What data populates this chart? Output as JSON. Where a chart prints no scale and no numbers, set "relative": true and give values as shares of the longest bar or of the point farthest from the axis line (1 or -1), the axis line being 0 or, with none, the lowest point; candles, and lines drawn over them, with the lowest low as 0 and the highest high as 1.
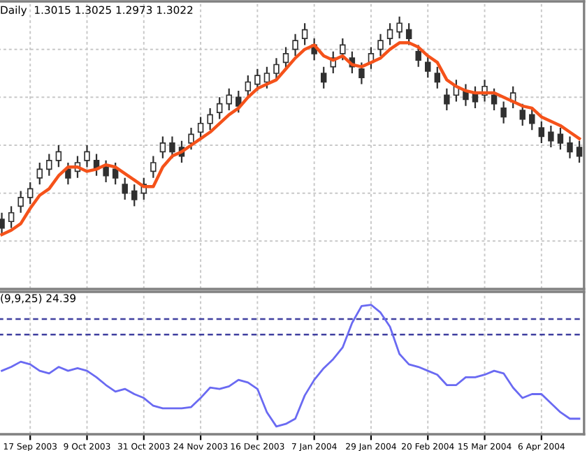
{
  "chart_data": [
    {
      "type": "candlestick",
      "title": "Daily  1.3015 1.3025 1.2973 1.3022",
      "relative": true,
      "grid": true,
      "tick_labels": false,
      "color": "#303030",
      "categories": [
        null,
        null,
        null,
        null,
        null,
        null,
        null,
        null,
        null,
        null,
        null,
        null,
        null,
        null,
        null,
        null,
        null,
        null,
        null,
        null,
        null,
        null,
        null,
        null,
        null,
        null,
        null,
        null,
        null,
        null,
        null,
        null,
        null,
        null,
        null,
        null,
        null,
        null,
        null,
        null,
        null,
        null,
        null,
        null,
        null,
        null,
        null,
        null,
        null,
        null,
        null,
        null,
        null,
        null,
        null,
        null,
        null,
        null,
        null,
        null,
        null,
        null
      ],
      "ohlc": [
        [
          0.07,
          0.1,
          0.0,
          0.03
        ],
        [
          0.06,
          0.13,
          0.03,
          0.1
        ],
        [
          0.13,
          0.2,
          0.1,
          0.17
        ],
        [
          0.17,
          0.24,
          0.14,
          0.21
        ],
        [
          0.26,
          0.33,
          0.23,
          0.3
        ],
        [
          0.3,
          0.37,
          0.27,
          0.34
        ],
        [
          0.34,
          0.41,
          0.31,
          0.38
        ],
        [
          0.3,
          0.33,
          0.23,
          0.26
        ],
        [
          0.29,
          0.36,
          0.26,
          0.33
        ],
        [
          0.34,
          0.41,
          0.31,
          0.38
        ],
        [
          0.34,
          0.37,
          0.27,
          0.3
        ],
        [
          0.31,
          0.34,
          0.24,
          0.27
        ],
        [
          0.3,
          0.33,
          0.23,
          0.26
        ],
        [
          0.23,
          0.26,
          0.16,
          0.19
        ],
        [
          0.2,
          0.23,
          0.13,
          0.16
        ],
        [
          0.19,
          0.26,
          0.16,
          0.23
        ],
        [
          0.29,
          0.36,
          0.26,
          0.33
        ],
        [
          0.38,
          0.45,
          0.35,
          0.42
        ],
        [
          0.42,
          0.45,
          0.35,
          0.38
        ],
        [
          0.4,
          0.43,
          0.33,
          0.36
        ],
        [
          0.42,
          0.49,
          0.39,
          0.46
        ],
        [
          0.47,
          0.54,
          0.44,
          0.51
        ],
        [
          0.51,
          0.58,
          0.48,
          0.55
        ],
        [
          0.56,
          0.63,
          0.53,
          0.6
        ],
        [
          0.6,
          0.67,
          0.57,
          0.64
        ],
        [
          0.63,
          0.66,
          0.56,
          0.59
        ],
        [
          0.66,
          0.73,
          0.63,
          0.7
        ],
        [
          0.69,
          0.76,
          0.66,
          0.73
        ],
        [
          0.7,
          0.77,
          0.67,
          0.74
        ],
        [
          0.74,
          0.81,
          0.71,
          0.78
        ],
        [
          0.79,
          0.86,
          0.76,
          0.83
        ],
        [
          0.85,
          0.92,
          0.82,
          0.89
        ],
        [
          0.9,
          0.97,
          0.87,
          0.94
        ],
        [
          0.87,
          0.9,
          0.8,
          0.83
        ],
        [
          0.74,
          0.77,
          0.67,
          0.7
        ],
        [
          0.77,
          0.84,
          0.74,
          0.81
        ],
        [
          0.83,
          0.9,
          0.8,
          0.87
        ],
        [
          0.81,
          0.84,
          0.74,
          0.77
        ],
        [
          0.76,
          0.79,
          0.69,
          0.72
        ],
        [
          0.79,
          0.86,
          0.76,
          0.83
        ],
        [
          0.85,
          0.92,
          0.82,
          0.89
        ],
        [
          0.9,
          0.97,
          0.87,
          0.94
        ],
        [
          0.93,
          1.0,
          0.9,
          0.97
        ],
        [
          0.94,
          0.97,
          0.87,
          0.9
        ],
        [
          0.84,
          0.87,
          0.77,
          0.8
        ],
        [
          0.79,
          0.82,
          0.72,
          0.75
        ],
        [
          0.74,
          0.77,
          0.67,
          0.7
        ],
        [
          0.64,
          0.67,
          0.57,
          0.6
        ],
        [
          0.64,
          0.71,
          0.61,
          0.68
        ],
        [
          0.66,
          0.69,
          0.59,
          0.62
        ],
        [
          0.65,
          0.68,
          0.58,
          0.61
        ],
        [
          0.64,
          0.71,
          0.61,
          0.68
        ],
        [
          0.64,
          0.67,
          0.57,
          0.6
        ],
        [
          0.58,
          0.61,
          0.51,
          0.54
        ],
        [
          0.61,
          0.68,
          0.58,
          0.65
        ],
        [
          0.57,
          0.6,
          0.5,
          0.53
        ],
        [
          0.55,
          0.58,
          0.48,
          0.51
        ],
        [
          0.49,
          0.52,
          0.42,
          0.45
        ],
        [
          0.47,
          0.5,
          0.4,
          0.43
        ],
        [
          0.46,
          0.49,
          0.39,
          0.42
        ],
        [
          0.42,
          0.45,
          0.35,
          0.38
        ],
        [
          0.4,
          0.43,
          0.33,
          0.36
        ]
      ],
      "series": [
        {
          "type": "line",
          "color": "#f5521a",
          "values": [
            0.0,
            0.02,
            0.05,
            0.12,
            0.18,
            0.21,
            0.27,
            0.31,
            0.31,
            0.29,
            0.3,
            0.32,
            0.31,
            0.28,
            0.25,
            0.22,
            0.22,
            0.31,
            0.36,
            0.38,
            0.41,
            0.44,
            0.47,
            0.51,
            0.55,
            0.58,
            0.63,
            0.67,
            0.69,
            0.71,
            0.76,
            0.81,
            0.85,
            0.87,
            0.82,
            0.8,
            0.82,
            0.78,
            0.77,
            0.79,
            0.81,
            0.85,
            0.88,
            0.88,
            0.86,
            0.82,
            0.79,
            0.71,
            0.68,
            0.66,
            0.65,
            0.65,
            0.65,
            0.63,
            0.61,
            0.59,
            0.58,
            0.54,
            0.52,
            0.5,
            0.47,
            0.44
          ]
        }
      ]
    },
    {
      "type": "line",
      "title": "(9,9,25) 24.39",
      "relative": true,
      "grid": "x",
      "tick_labels": "x",
      "categories": [
        null,
        null,
        null,
        "17 Sep 2003",
        null,
        null,
        null,
        null,
        null,
        "9 Oct 2003",
        null,
        null,
        null,
        null,
        null,
        "31 Oct 2003",
        null,
        null,
        null,
        null,
        null,
        "24 Nov 2003",
        null,
        null,
        null,
        null,
        null,
        "16 Dec 2003",
        null,
        null,
        null,
        null,
        null,
        "7 Jan 2004",
        null,
        null,
        null,
        null,
        null,
        "29 Jan 2004",
        null,
        null,
        null,
        null,
        null,
        "20 Feb 2004",
        null,
        null,
        null,
        null,
        null,
        "15 Mar 2004",
        null,
        null,
        null,
        null,
        null,
        "6 Apr 2004",
        null,
        null,
        null,
        null
      ],
      "series": [
        {
          "color": "#6a6af2",
          "values": [
            0.49,
            0.52,
            0.56,
            0.54,
            0.49,
            0.47,
            0.52,
            0.49,
            0.51,
            0.49,
            0.44,
            0.38,
            0.33,
            0.35,
            0.31,
            0.28,
            0.22,
            0.2,
            0.2,
            0.2,
            0.21,
            0.28,
            0.36,
            0.35,
            0.37,
            0.42,
            0.4,
            0.35,
            0.17,
            0.06,
            0.08,
            0.12,
            0.3,
            0.42,
            0.51,
            0.58,
            0.67,
            0.86,
            0.99,
            1.0,
            0.94,
            0.83,
            0.62,
            0.54,
            0.52,
            0.49,
            0.46,
            0.38,
            0.38,
            0.44,
            0.44,
            0.46,
            0.49,
            0.47,
            0.36,
            0.28,
            0.31,
            0.31,
            0.24,
            0.17,
            0.12,
            0.12
          ]
        }
      ],
      "ref_lines": [
        {
          "axis": "y",
          "value": 0.89,
          "color": "#4040a0",
          "line_style": "dashed"
        },
        {
          "axis": "y",
          "value": 0.77,
          "color": "#4040a0",
          "line_style": "dashed"
        }
      ]
    }
  ]
}
